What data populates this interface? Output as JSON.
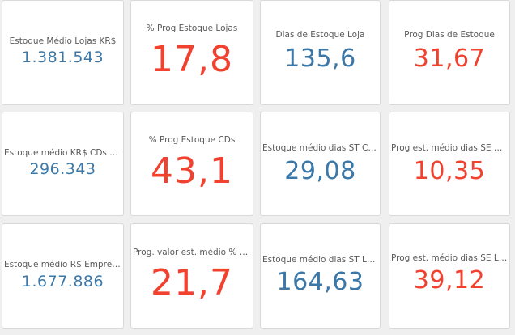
{
  "colors": {
    "blue": "#3b78a8",
    "red": "#f1412f"
  },
  "kpis": [
    {
      "label": "Estoque Médio Lojas KR$",
      "value": "1.381.543",
      "color": "blue",
      "size": "m"
    },
    {
      "label": "% Prog Estoque Lojas",
      "value": "17,8",
      "color": "red",
      "size": "xl"
    },
    {
      "label": "Dias de Estoque Loja",
      "value": "135,6",
      "color": "blue",
      "size": "l"
    },
    {
      "label": "Prog Dias de Estoque",
      "value": "31,67",
      "color": "red",
      "size": "l"
    },
    {
      "label": "Estoque médio KR$ CDs + Pla…",
      "value": "296.343",
      "color": "blue",
      "size": "m"
    },
    {
      "label": "% Prog Estoque CDs",
      "value": "43,1",
      "color": "red",
      "size": "xl"
    },
    {
      "label": "Estoque médio dias ST CDs + …",
      "value": "29,08",
      "color": "blue",
      "size": "l"
    },
    {
      "label": "Prog est. médio dias SE CDs + …",
      "value": "10,35",
      "color": "red",
      "size": "l"
    },
    {
      "label": "Estoque médio R$ Empresa L…",
      "value": "1.677.886",
      "color": "blue",
      "size": "m"
    },
    {
      "label": "Prog. valor est. médio % LMB",
      "value": "21,7",
      "color": "red",
      "size": "xl"
    },
    {
      "label": "Estoque médio dias ST LMB",
      "value": "164,63",
      "color": "blue",
      "size": "l"
    },
    {
      "label": "Prog est. médio dias SE LMB",
      "value": "39,12",
      "color": "red",
      "size": "l"
    }
  ]
}
